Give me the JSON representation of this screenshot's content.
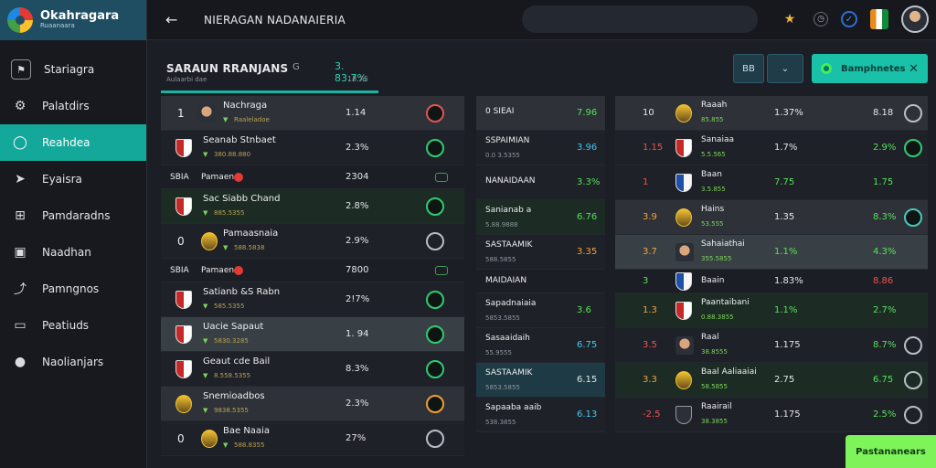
{
  "app": {
    "brand_title": "Okahragara",
    "brand_sub": "Ruaanaara"
  },
  "sidebar": {
    "items": [
      {
        "label": "Stariagra",
        "icon": "team-logo-icon"
      },
      {
        "label": "Palatdirs",
        "icon": "gear-icon"
      },
      {
        "label": "Reahdea",
        "icon": "chat-bubble-icon",
        "active": true
      },
      {
        "label": "Eyaisra",
        "icon": "send-icon"
      },
      {
        "label": "Pamdaradns",
        "icon": "grid-icon"
      },
      {
        "label": "Naadhan",
        "icon": "window-icon"
      },
      {
        "label": "Pamngnos",
        "icon": "share-icon"
      },
      {
        "label": "Peatiuds",
        "icon": "desktop-icon"
      },
      {
        "label": "Naolianjars",
        "icon": "info-icon"
      }
    ]
  },
  "header": {
    "title": "NIERAGAN NADANAIERIA",
    "search_placeholder": "",
    "icons": [
      "star-icon",
      "clock-icon",
      "check-circle-icon",
      "shield-flag-icon",
      "avatar"
    ]
  },
  "tab": {
    "title": "SARAUN RRANJANS",
    "sub": "Aulaarbi dae",
    "mid": "G",
    "odds": "3. 83.7%",
    "odds2": "18.75"
  },
  "toolbar": {
    "btn1": "BB",
    "btn2": "⌄",
    "cta_label": "Bamphnetes",
    "bottom_cta": "Pastananears"
  },
  "left_rows": [
    {
      "style": "r-mid",
      "kind": "player",
      "num": "1",
      "name": "Nachraga",
      "sub": "Raaleladoe",
      "value": "1.14",
      "ring": "ring-red"
    },
    {
      "style": "r-dark",
      "kind": "crest",
      "name": "Seanab Stnbaet",
      "sub": "380.88.880",
      "value": "2.3%",
      "ring": "green"
    },
    {
      "style": "sm",
      "kind": "header",
      "name": "SBIA",
      "label": "Pamaen",
      "value": "2304",
      "ring": ""
    },
    {
      "style": "r-green",
      "kind": "crest",
      "name": "Sac Siabb Chand",
      "sub": "885.5355",
      "value": "2.8%",
      "ring": "green"
    },
    {
      "style": "r-dark",
      "kind": "crest-y",
      "num": "0",
      "name": "Pamaasnaia",
      "sub": "588.5838",
      "value": "2.9%",
      "ring": "white"
    },
    {
      "style": "sm",
      "kind": "header",
      "name": "SBIA",
      "label": "Pamaen",
      "value": "7800",
      "ring": ""
    },
    {
      "style": "r-dark",
      "kind": "crest",
      "name": "Satianb &S Rabn",
      "sub": "585.5355",
      "value": "2!7%",
      "ring": "green"
    },
    {
      "style": "r-hl",
      "kind": "crest",
      "name": "Uacie Sapaut",
      "sub": "5830.3285",
      "value": "1. 94",
      "ring": "green"
    },
    {
      "style": "r-dark",
      "kind": "crest",
      "name": "Geaut cde Bail",
      "sub": "8.558.5355",
      "value": "8.3%",
      "ring": "green"
    },
    {
      "style": "r-mid",
      "kind": "crest-y",
      "name": "Snemioadbos",
      "sub": "9838.5355",
      "value": "2.3%",
      "ring": "orange"
    },
    {
      "style": "r-dark",
      "kind": "crest-y",
      "num": "0",
      "name": "Bae Naaia",
      "sub": "588.8355",
      "value": "27%",
      "ring": "white"
    }
  ],
  "mid_rows": [
    {
      "style": "r-mid",
      "name": "0 SIEAI",
      "value": "7.96",
      "vcol": "g",
      "ring": true
    },
    {
      "style": "r-dark",
      "name": "SSPAIMIAN",
      "sub": "0.0 3.5355",
      "value": "3.96",
      "vcol": "c"
    },
    {
      "style": "r-dark",
      "name": "NANAIDAAN",
      "value": "3.3%",
      "vcol": "g"
    },
    {
      "style": "r-green",
      "name": "Sanianab a",
      "sub": "5.88.9888",
      "value": "6.76",
      "vcol": "g"
    },
    {
      "style": "r-dark",
      "name": "SASTAAMIK",
      "sub": "588.5855",
      "value": "3.35",
      "vcol": "o"
    },
    {
      "style": "sm",
      "name": "MAIDAIAN",
      "value": "",
      "vcol": ""
    },
    {
      "style": "r-dark",
      "name": "Sapadnaiaia",
      "sub": "5853.5855",
      "value": "3.6",
      "vcol": "g"
    },
    {
      "style": "r-dark",
      "name": "Sasaaidaih",
      "sub": "55.9555",
      "value": "6.75",
      "vcol": "c"
    },
    {
      "style": "r-teal",
      "name": "SASTAAMIK",
      "sub": "5853.5855",
      "value": "6.15",
      "vcol": ""
    },
    {
      "style": "r-dark",
      "name": "Sapaaba aaib",
      "sub": "538.3855",
      "value": "6.13",
      "vcol": "c"
    }
  ],
  "right_rows": [
    {
      "style": "r-mid",
      "num": "10",
      "kind": "ball",
      "name": "Raaah",
      "sub": "85.855",
      "a": "1.37%",
      "b": "8.18",
      "ring": "white"
    },
    {
      "style": "r-dark",
      "num": "1.15",
      "numcol": "r",
      "kind": "crest",
      "name": "Sanaiaa",
      "sub": "5.5.565",
      "a": "1.7%",
      "b": "2.9%",
      "bcol": "g",
      "ring": "green"
    },
    {
      "style": "r-dark",
      "num": "1",
      "numcol": "r",
      "kind": "crest-b",
      "name": "Baan",
      "sub": "3.5.855",
      "a": "7.75",
      "acol": "g",
      "b": "1.75",
      "bcol": "g",
      "ring": "0.0"
    },
    {
      "style": "r-mid",
      "num": "3.9",
      "numcol": "o",
      "kind": "crest-y",
      "name": "Hains",
      "sub": "53.555",
      "a": "1.35",
      "b": "8.3%",
      "bcol": "g",
      "ring": "teal"
    },
    {
      "style": "r-hl",
      "num": "3.7",
      "numcol": "o",
      "kind": "player",
      "name": "Sahaiathai",
      "sub": "355.5855",
      "a": "1.1%",
      "acol": "g",
      "b": "4.3%",
      "bcol": "g",
      "ring": ""
    },
    {
      "style": "sm",
      "num": "3",
      "numcol": "g",
      "kind": "crest-b",
      "name": "Baain",
      "a": "1.83%",
      "b": "8.86",
      "bcol": "r",
      "ring": "0.0"
    },
    {
      "style": "r-green",
      "num": "1.3",
      "numcol": "o",
      "kind": "crest",
      "name": "Paantaibani",
      "sub": "0.88.3855",
      "a": "1.1%",
      "acol": "g",
      "b": "2.7%",
      "bcol": "g",
      "ring": "0.9"
    },
    {
      "style": "r-dark",
      "num": "3.5",
      "numcol": "r",
      "kind": "player",
      "name": "Raal",
      "sub": "38.8555",
      "a": "1.175",
      "b": "8.7%",
      "bcol": "g",
      "ring": "white"
    },
    {
      "style": "r-green",
      "num": "3.3",
      "numcol": "o",
      "kind": "ball",
      "name": "Baal Aaliaaiai",
      "sub": "58.5855",
      "a": "2.75",
      "b": "6.75",
      "bcol": "g",
      "ring": "white"
    },
    {
      "style": "r-dark",
      "num": "-2.5",
      "numcol": "r",
      "kind": "crest-k",
      "name": "Raairail",
      "sub": "38.3855",
      "a": "1.175",
      "b": "2.5%",
      "bcol": "g",
      "ring": "white"
    }
  ]
}
